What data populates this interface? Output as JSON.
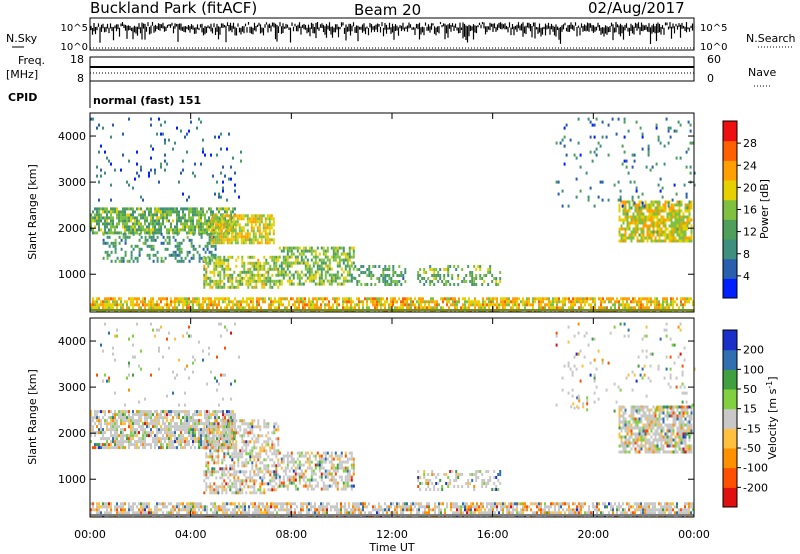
{
  "header": {
    "title": "Buckland Park (fitACF)",
    "beam": "Beam 20",
    "date": "02/Aug/2017"
  },
  "noise_panel": {
    "left_label": "N.Sky",
    "right_label": "N.Search",
    "ticks": [
      "10^5",
      "10^0"
    ]
  },
  "freq_panel": {
    "left_label_line1": "Freq.",
    "left_label_line2": "[MHz]",
    "left_ticks": [
      "18",
      "8"
    ],
    "right_label": "Nave",
    "right_ticks": [
      "60",
      "0"
    ]
  },
  "cpid_panel": {
    "label": "CPID",
    "value": "normal (fast) 151"
  },
  "colors": {
    "power_scale": [
      "#0020ff",
      "#2a5fb0",
      "#3f8f7f",
      "#4f9f5a",
      "#7fc040",
      "#e6d000",
      "#ffa000",
      "#ff6000",
      "#ee1010"
    ],
    "velocity_scale": [
      "#e01010",
      "#ff5000",
      "#ff9000",
      "#ffc040",
      "#c8c8c8",
      "#80d040",
      "#40a040",
      "#306fb0",
      "#1a30c8"
    ]
  },
  "chart_data": [
    {
      "type": "heatmap",
      "title": "Power",
      "ylabel": "Slant Range [km]",
      "xlabel": "",
      "ylim": [
        180,
        4500
      ],
      "xlim": [
        "00:00",
        "24:00"
      ],
      "yticks": [
        "4000",
        "3000",
        "2000",
        "1000"
      ],
      "colorbar": {
        "label": "Power [dB]",
        "range": [
          0,
          32
        ],
        "ticks": [
          "28",
          "24",
          "20",
          "16",
          "12",
          "8",
          "4"
        ]
      },
      "echo_regions": [
        {
          "t_start": 0.0,
          "t_end": 5.8,
          "r_start": 1900,
          "r_end": 2450,
          "level": 14,
          "density": 0.75
        },
        {
          "t_start": 0.5,
          "t_end": 5.0,
          "r_start": 1300,
          "r_end": 1900,
          "level": 10,
          "density": 0.35
        },
        {
          "t_start": 4.8,
          "t_end": 7.3,
          "r_start": 1700,
          "r_end": 2300,
          "level": 19,
          "density": 0.8
        },
        {
          "t_start": 4.5,
          "t_end": 7.5,
          "r_start": 700,
          "r_end": 1400,
          "level": 17,
          "density": 0.6
        },
        {
          "t_start": 7.5,
          "t_end": 10.5,
          "r_start": 800,
          "r_end": 1600,
          "level": 15,
          "density": 0.6
        },
        {
          "t_start": 10.5,
          "t_end": 12.5,
          "r_start": 800,
          "r_end": 1200,
          "level": 12,
          "density": 0.4
        },
        {
          "t_start": 13.0,
          "t_end": 16.3,
          "r_start": 750,
          "r_end": 1200,
          "level": 14,
          "density": 0.35
        },
        {
          "t_start": 21.0,
          "t_end": 23.9,
          "r_start": 1700,
          "r_end": 2600,
          "level": 19,
          "density": 0.75
        },
        {
          "t_start": 0.0,
          "t_end": 24.0,
          "r_start": 200,
          "r_end": 500,
          "level": 21,
          "density": 0.7
        },
        {
          "t_start": 0.0,
          "t_end": 6.0,
          "r_start": 2600,
          "r_end": 4400,
          "level": 6,
          "density": 0.05
        },
        {
          "t_start": 18.5,
          "t_end": 24.0,
          "r_start": 2500,
          "r_end": 4400,
          "level": 8,
          "density": 0.06
        }
      ]
    },
    {
      "type": "heatmap",
      "title": "Velocity",
      "ylabel": "Slant Range [km]",
      "xlabel": "Time UT",
      "ylim": [
        180,
        4500
      ],
      "xlim": [
        "00:00",
        "24:00"
      ],
      "xticks": [
        "00:00",
        "04:00",
        "08:00",
        "12:00",
        "16:00",
        "20:00",
        "00:00"
      ],
      "yticks": [
        "4000",
        "3000",
        "2000",
        "1000"
      ],
      "colorbar": {
        "label": "Velocity [m s^-1]",
        "label_main": "Velocity [m s",
        "label_sup": "-1",
        "label_end": "]",
        "ticks": [
          "200",
          "100",
          "50",
          "15",
          "-15",
          "-50",
          "-100",
          "-200"
        ]
      },
      "echo_regions": [
        {
          "t_start": 0.0,
          "t_end": 5.8,
          "r_start": 1700,
          "r_end": 2500,
          "level": 0,
          "density": 0.75
        },
        {
          "t_start": 4.5,
          "t_end": 7.5,
          "r_start": 700,
          "r_end": 2300,
          "level": -10,
          "density": 0.55
        },
        {
          "t_start": 7.5,
          "t_end": 10.5,
          "r_start": 800,
          "r_end": 1600,
          "level": 0,
          "density": 0.55
        },
        {
          "t_start": 13.0,
          "t_end": 16.3,
          "r_start": 750,
          "r_end": 1200,
          "level": 0,
          "density": 0.3
        },
        {
          "t_start": 19.0,
          "t_end": 20.0,
          "r_start": 2500,
          "r_end": 2800,
          "level": 0,
          "density": 0.3
        },
        {
          "t_start": 21.0,
          "t_end": 23.9,
          "r_start": 1600,
          "r_end": 2600,
          "level": 0,
          "density": 0.75
        },
        {
          "t_start": 0.0,
          "t_end": 24.0,
          "r_start": 200,
          "r_end": 500,
          "level": -40,
          "density": 0.7
        },
        {
          "t_start": 0.0,
          "t_end": 6.0,
          "r_start": 2600,
          "r_end": 4400,
          "level": 0,
          "density": 0.05
        },
        {
          "t_start": 18.5,
          "t_end": 24.0,
          "r_start": 2500,
          "r_end": 4400,
          "level": 0,
          "density": 0.06
        }
      ]
    }
  ]
}
